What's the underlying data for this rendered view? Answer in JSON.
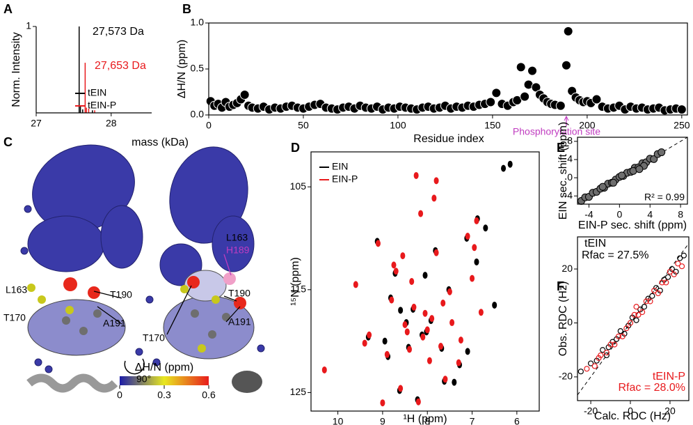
{
  "chart_data": [
    {
      "panel": "A",
      "type": "stem",
      "xlabel": "mass (kDa)",
      "ylabel": "Norm. Intensity",
      "xlim": [
        27,
        28.54
      ],
      "ylim": [
        0,
        1
      ],
      "xticks": [
        27,
        28
      ],
      "yticks": [
        1
      ],
      "legend": "lower right",
      "series": [
        {
          "name": "tEIN",
          "color": "#000000",
          "x": [
            27.573,
            27.59,
            27.62,
            27.75
          ],
          "values": [
            1.0,
            0.08,
            0.04,
            0.03
          ]
        },
        {
          "name": "tEIN-P",
          "color": "#e8191c",
          "x": [
            27.653,
            27.67,
            27.7,
            27.78
          ],
          "values": [
            0.58,
            0.06,
            0.05,
            0.03
          ]
        }
      ],
      "annotations": [
        {
          "text": "27,573 Da",
          "color": "#000000"
        },
        {
          "text": "27,653 Da",
          "color": "#e8191c"
        }
      ]
    },
    {
      "panel": "B",
      "type": "scatter",
      "marker": "filled",
      "color": "#000000",
      "xlabel": "Residue index",
      "ylabel": "ΔH/N (ppm)",
      "xlim": [
        0,
        253
      ],
      "ylim": [
        0,
        1
      ],
      "xticks": [
        0,
        50,
        100,
        150,
        200,
        250
      ],
      "yticks": [
        {
          "value": 0,
          "label": "0.0"
        },
        {
          "value": 0.5,
          "label": "0.5"
        },
        {
          "value": 1,
          "label": "1.0"
        }
      ],
      "x": [
        1,
        3,
        5,
        7,
        9,
        11,
        13,
        15,
        17,
        19,
        21,
        23,
        26,
        29,
        32,
        35,
        38,
        41,
        44,
        47,
        50,
        53,
        56,
        59,
        62,
        65,
        68,
        71,
        74,
        77,
        80,
        83,
        86,
        89,
        92,
        95,
        98,
        101,
        104,
        107,
        110,
        113,
        116,
        119,
        122,
        125,
        128,
        131,
        134,
        137,
        140,
        143,
        146,
        149,
        152,
        155,
        158,
        161,
        163,
        165,
        167,
        169,
        171,
        173,
        175,
        177,
        179,
        181,
        183,
        186,
        189,
        190,
        192,
        194,
        196,
        198,
        200,
        202,
        205,
        208,
        211,
        214,
        217,
        220,
        223,
        226,
        229,
        232,
        235,
        238,
        241,
        244,
        247,
        250
      ],
      "values": [
        0.15,
        0.1,
        0.12,
        0.08,
        0.14,
        0.09,
        0.11,
        0.13,
        0.17,
        0.22,
        0.1,
        0.08,
        0.07,
        0.09,
        0.06,
        0.08,
        0.07,
        0.09,
        0.1,
        0.08,
        0.07,
        0.09,
        0.11,
        0.12,
        0.08,
        0.07,
        0.06,
        0.08,
        0.09,
        0.07,
        0.1,
        0.08,
        0.07,
        0.09,
        0.06,
        0.08,
        0.07,
        0.09,
        0.08,
        0.07,
        0.06,
        0.08,
        0.09,
        0.07,
        0.08,
        0.1,
        0.07,
        0.09,
        0.08,
        0.1,
        0.09,
        0.11,
        0.12,
        0.14,
        0.24,
        0.12,
        0.1,
        0.14,
        0.16,
        0.52,
        0.2,
        0.33,
        0.48,
        0.3,
        0.22,
        0.18,
        0.14,
        0.12,
        0.11,
        0.1,
        0.54,
        0.91,
        0.26,
        0.19,
        0.16,
        0.14,
        0.15,
        0.13,
        0.17,
        0.09,
        0.07,
        0.08,
        0.1,
        0.06,
        0.09,
        0.07,
        0.08,
        0.06,
        0.07,
        0.08,
        0.05,
        0.06,
        0.07,
        0.06
      ],
      "annotations": [
        {
          "text": "Phosphorylation site",
          "color": "#c03cc0",
          "x": 189
        }
      ]
    },
    {
      "panel": "D",
      "type": "scatter",
      "marker": "ellipse",
      "xlabel": "¹H (ppm)",
      "ylabel": "¹⁵N (ppm)",
      "xlim": [
        10.6,
        5.5
      ],
      "ylim": [
        126.8,
        101.6
      ],
      "xticks": [
        10,
        9,
        8,
        7,
        6
      ],
      "yticks": [
        105,
        115,
        125
      ],
      "legend": "upper left",
      "series": [
        {
          "name": "EIN",
          "color": "#000000",
          "x": [
            9.12,
            8.88,
            8.72,
            8.47,
            8.32,
            8.12,
            7.92,
            7.68,
            7.52,
            7.28,
            7.12,
            6.88,
            8.62,
            8.22,
            7.82,
            8.02,
            8.42,
            7.62,
            8.82,
            9.32,
            6.5,
            6.3,
            6.15,
            6.7,
            8.95,
            8.6,
            7.4,
            7.1,
            6.9,
            8.05
          ],
          "values": [
            110.3,
            121.5,
            113.4,
            118.2,
            116.9,
            119.4,
            118.0,
            120.7,
            115.0,
            122.3,
            110.0,
            108.1,
            124.8,
            125.7,
            111.2,
            119.1,
            120.6,
            123.9,
            115.8,
            119.6,
            116.5,
            103.2,
            102.8,
            109.0,
            120.0,
            117.0,
            124.0,
            121.0,
            112.3,
            113.6
          ]
        },
        {
          "name": "EIN-P",
          "color": "#e8191c",
          "x": [
            9.1,
            8.9,
            8.7,
            8.5,
            8.3,
            8.1,
            7.9,
            7.7,
            7.5,
            7.3,
            7.1,
            6.9,
            8.6,
            8.2,
            7.8,
            8.0,
            8.4,
            7.6,
            8.8,
            9.3,
            9.6,
            10.3,
            7.0,
            6.8,
            8.35,
            7.95,
            8.15,
            7.85,
            8.55,
            7.45,
            9.0,
            8.75,
            7.25,
            6.95,
            8.05,
            7.65,
            8.45,
            9.4,
            7.8,
            8.25
          ],
          "values": [
            110.5,
            121.3,
            113.2,
            118.4,
            116.7,
            119.6,
            117.8,
            120.5,
            115.2,
            122.1,
            109.8,
            108.3,
            124.6,
            125.9,
            111.4,
            118.9,
            120.8,
            123.7,
            116.0,
            119.4,
            114.5,
            122.8,
            113.9,
            117.2,
            114.2,
            121.9,
            107.6,
            106.1,
            111.7,
            118.2,
            126.0,
            112.6,
            119.9,
            110.9,
            117.3,
            116.3,
            119.1,
            120.2,
            104.4,
            103.9
          ]
        }
      ]
    },
    {
      "panel": "E",
      "type": "scatter",
      "marker": "filled",
      "color": "#6e6e6e",
      "diagonal": true,
      "xlabel": "EIN-P sec. shift (ppm)",
      "ylabel": "EIN sec. shift (ppm)",
      "xlim": [
        -5.5,
        8.9
      ],
      "ylim": [
        -5.8,
        8.9
      ],
      "xticks": [
        -4,
        0,
        4,
        8
      ],
      "yticks": [
        -4,
        0,
        4,
        8
      ],
      "x": [
        -5,
        -4.5,
        -4,
        -3.5,
        -3,
        -2.5,
        -2,
        -1.5,
        -1,
        -0.5,
        0,
        0.5,
        1,
        1.5,
        2,
        2.5,
        3,
        3.5,
        4,
        4.5,
        5,
        5.5,
        -2.2,
        0.3,
        1.8,
        3.2,
        2.6,
        -0.8
      ],
      "values": [
        -5.1,
        -4.3,
        -4.2,
        -3.3,
        -3.1,
        -2.4,
        -2.2,
        -1.3,
        -1.1,
        -0.4,
        0.2,
        0.4,
        1.1,
        1.3,
        2.2,
        2.3,
        3.2,
        3.4,
        4.2,
        4.1,
        5.2,
        5.6,
        -2.0,
        0.5,
        1.5,
        2.6,
        1.9,
        -1.1
      ],
      "annotations": [
        {
          "text": "R² = 0.99",
          "color": "#000000"
        }
      ]
    },
    {
      "panel": "F",
      "type": "scatter",
      "marker": "open",
      "diagonal": true,
      "xlabel": "Calc. RDC (Hz)",
      "ylabel": "Obs. RDC (Hz)",
      "xlim": [
        -26.7,
        29.5
      ],
      "ylim": [
        -28.8,
        31.9
      ],
      "xticks": [
        -20,
        0,
        20
      ],
      "yticks": [
        -20,
        0,
        20
      ],
      "series": [
        {
          "color": "#000000",
          "x": [
            -25,
            -20,
            -17,
            -14,
            -11,
            -9,
            -7,
            -5,
            -3,
            -1,
            1,
            3,
            5,
            7,
            9,
            11,
            13,
            15,
            17,
            19,
            21,
            23,
            25,
            27,
            -12
          ],
          "values": [
            -18,
            -15,
            -14,
            -10,
            -9,
            -7,
            -6,
            -3,
            -4,
            -1,
            2,
            1,
            5,
            6,
            9,
            10,
            13,
            12,
            16,
            17,
            20,
            19,
            24,
            25,
            -12
          ]
        },
        {
          "color": "#e8191c",
          "x": [
            -22,
            -18,
            -15,
            -12,
            -10,
            -8,
            -6,
            -4,
            -2,
            0,
            2,
            4,
            6,
            8,
            10,
            12,
            14,
            16,
            18,
            20,
            22,
            24,
            26,
            -16,
            3
          ],
          "values": [
            -17,
            -16,
            -12,
            -11,
            -8,
            -8,
            -5,
            -5,
            -2,
            0,
            3,
            3,
            4,
            8,
            8,
            12,
            11,
            15,
            15,
            19,
            18,
            22,
            21,
            -13,
            6
          ]
        }
      ],
      "annotations": [
        {
          "text": "tEIN",
          "color": "#000000"
        },
        {
          "text": "Rfac = 27.5%",
          "color": "#000000"
        },
        {
          "text": "tEIN-P",
          "color": "#e8191c"
        },
        {
          "text": "Rfac = 28.0%",
          "color": "#e8191c"
        }
      ]
    }
  ],
  "structure": {
    "panel": "C",
    "labels": [
      "L163",
      "T170",
      "T190",
      "A191",
      "L163",
      "H189",
      "T190",
      "T170",
      "A191"
    ],
    "rotation": "90°",
    "colorbar_label": "ΔH/N (ppm)",
    "colorbar_ticks": [
      0,
      0.3,
      0.6
    ]
  }
}
